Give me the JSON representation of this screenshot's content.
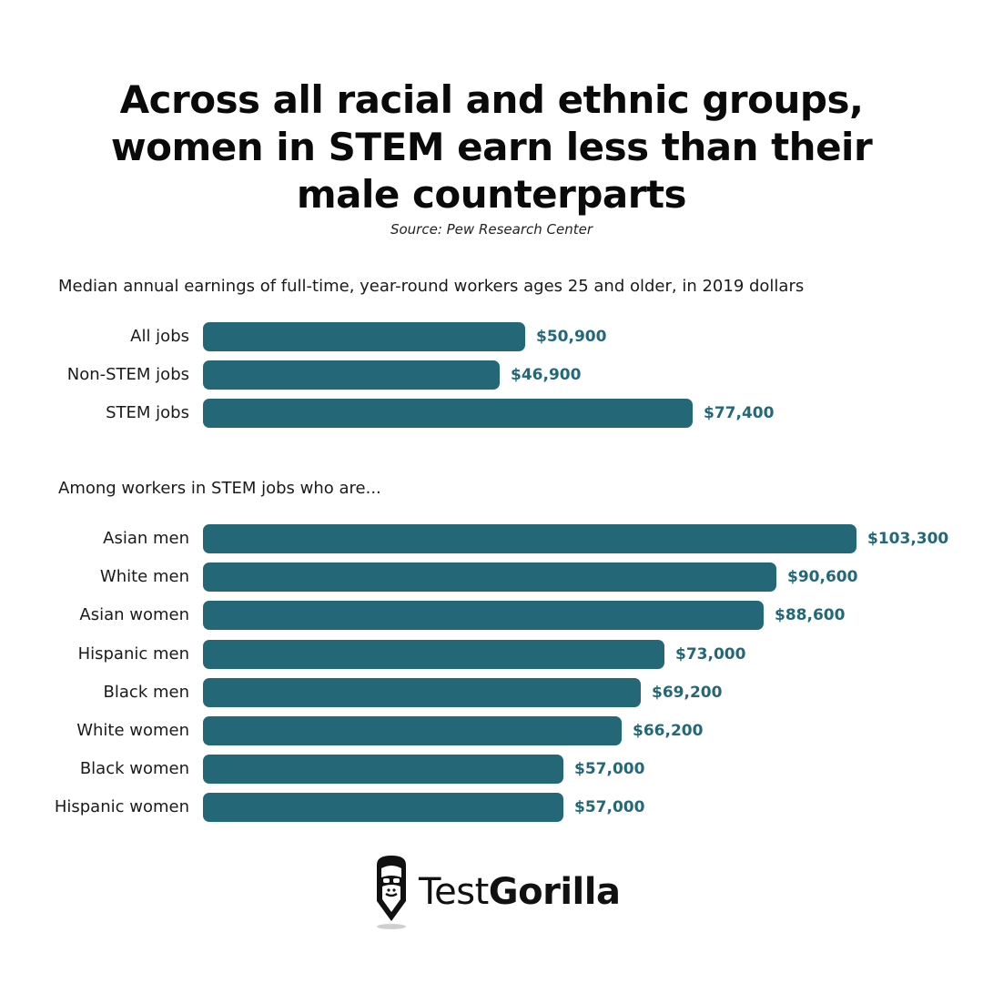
{
  "title_lines": [
    "Across all racial and ethnic groups,",
    "women in STEM earn less than their",
    "male counterparts"
  ],
  "source": "Source: Pew Research Center",
  "colors": {
    "bar": "#246878",
    "value_text": "#246878"
  },
  "brand": {
    "name_light": "Test",
    "name_bold": "Gorilla",
    "logo_icon": "gorilla-head-icon"
  },
  "chart_data": [
    {
      "type": "bar",
      "orientation": "horizontal",
      "subtitle": "Median annual earnings of full-time, year-round workers ages 25 and older, in 2019 dollars",
      "categories": [
        "All jobs",
        "Non-STEM jobs",
        "STEM jobs"
      ],
      "values": [
        50900,
        46900,
        77400
      ],
      "value_labels": [
        "$50,900",
        "$46,900",
        "$77,400"
      ],
      "xlim": [
        0,
        103300
      ]
    },
    {
      "type": "bar",
      "orientation": "horizontal",
      "subtitle": "Among workers in STEM jobs who are...",
      "categories": [
        "Asian men",
        "White men",
        "Asian women",
        "Hispanic men",
        "Black men",
        "White women",
        "Black women",
        "Hispanic women"
      ],
      "values": [
        103300,
        90600,
        88600,
        73000,
        69200,
        66200,
        57000,
        57000
      ],
      "value_labels": [
        "$103,300",
        "$90,600",
        "$88,600",
        "$73,000",
        "$69,200",
        "$66,200",
        "$57,000",
        "$57,000"
      ],
      "xlim": [
        0,
        103300
      ]
    }
  ]
}
